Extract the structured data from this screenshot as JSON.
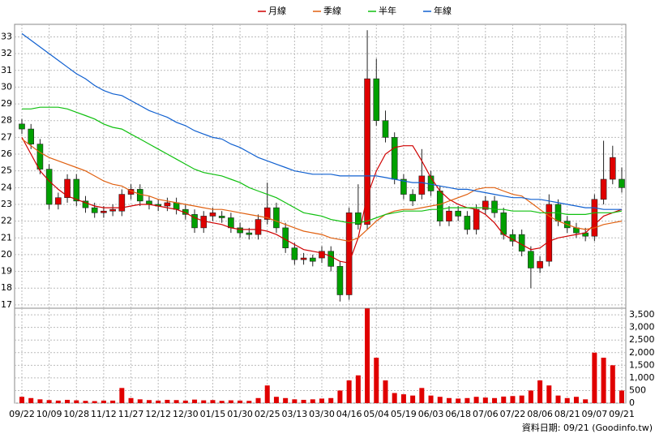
{
  "chart_data": {
    "type": "candlestick",
    "categories": [
      "09/22",
      null,
      null,
      "10/09",
      null,
      null,
      "10/28",
      null,
      null,
      "11/12",
      null,
      null,
      "11/27",
      null,
      null,
      "12/12",
      null,
      null,
      "12/30",
      null,
      null,
      "01/15",
      null,
      null,
      "01/30",
      null,
      null,
      "02/25",
      null,
      null,
      "03/13",
      null,
      null,
      "03/30",
      null,
      null,
      "04/16",
      null,
      null,
      "05/04",
      null,
      null,
      "05/19",
      null,
      null,
      "06/03",
      null,
      null,
      "06/18",
      null,
      null,
      "07/06",
      null,
      null,
      "07/22",
      null,
      null,
      "08/06",
      null,
      null,
      "08/21",
      null,
      null,
      "09/07",
      null,
      null,
      "09/21"
    ],
    "open": [
      27.8,
      27.5,
      26.6,
      25.1,
      23.0,
      23.4,
      24.5,
      23.2,
      22.8,
      22.5,
      22.6,
      22.6,
      23.6,
      23.9,
      23.2,
      23.0,
      22.9,
      23.1,
      22.7,
      22.4,
      21.6,
      22.3,
      22.3,
      22.2,
      21.6,
      21.3,
      21.2,
      22.1,
      22.8,
      21.6,
      20.4,
      19.7,
      19.8,
      19.8,
      20.2,
      19.3,
      17.6,
      22.5,
      21.8,
      30.5,
      28.0,
      27.0,
      24.5,
      23.6,
      23.6,
      24.7,
      23.8,
      22.0,
      22.6,
      22.3,
      21.5,
      22.7,
      23.2,
      22.5,
      21.2,
      21.2,
      20.2,
      19.2,
      19.6,
      23.0,
      22.0,
      21.6,
      21.3,
      21.1,
      23.3,
      24.5,
      24.5
    ],
    "high": [
      28.1,
      27.8,
      26.9,
      25.4,
      23.7,
      24.8,
      24.8,
      23.5,
      23.1,
      22.9,
      23.0,
      23.9,
      24.2,
      24.2,
      23.5,
      23.3,
      23.4,
      23.4,
      23.0,
      22.7,
      22.6,
      22.8,
      22.6,
      22.5,
      21.9,
      21.6,
      22.4,
      24.3,
      23.1,
      21.9,
      20.7,
      20.1,
      20.0,
      20.5,
      20.5,
      19.6,
      22.8,
      24.2,
      33.4,
      31.7,
      28.6,
      27.3,
      24.8,
      23.9,
      26.3,
      25.0,
      24.1,
      22.9,
      22.9,
      22.6,
      23.0,
      23.5,
      23.5,
      22.8,
      21.5,
      21.5,
      20.5,
      19.9,
      23.6,
      23.3,
      22.3,
      21.9,
      21.6,
      23.6,
      26.8,
      26.5,
      25.2
    ],
    "low": [
      27.2,
      26.3,
      24.8,
      22.7,
      22.7,
      23.1,
      22.9,
      22.5,
      22.2,
      22.2,
      22.3,
      22.3,
      23.3,
      22.9,
      22.7,
      22.6,
      22.6,
      22.4,
      22.1,
      21.3,
      21.3,
      22.0,
      21.9,
      21.3,
      21.0,
      20.9,
      20.9,
      21.8,
      21.3,
      20.1,
      19.4,
      19.4,
      19.3,
      19.5,
      19.0,
      17.2,
      17.3,
      21.5,
      21.5,
      27.7,
      26.7,
      24.2,
      23.3,
      22.9,
      23.3,
      23.5,
      21.7,
      21.7,
      22.0,
      21.2,
      21.2,
      22.4,
      22.2,
      20.9,
      20.5,
      19.9,
      18.0,
      18.9,
      19.3,
      21.7,
      21.3,
      21.0,
      20.8,
      20.8,
      23.0,
      24.2,
      23.7
    ],
    "close": [
      27.5,
      26.6,
      25.1,
      23.0,
      23.4,
      24.5,
      23.2,
      22.8,
      22.5,
      22.6,
      22.7,
      23.6,
      23.9,
      23.2,
      23.0,
      22.9,
      23.1,
      22.7,
      22.4,
      21.6,
      22.3,
      22.5,
      22.2,
      21.6,
      21.3,
      21.2,
      22.1,
      22.8,
      21.6,
      20.4,
      19.7,
      19.8,
      19.6,
      20.2,
      19.3,
      17.6,
      22.5,
      21.8,
      30.5,
      28.0,
      27.0,
      24.5,
      23.6,
      23.2,
      24.7,
      23.8,
      22.0,
      22.6,
      22.3,
      21.5,
      22.7,
      23.2,
      22.5,
      21.2,
      20.8,
      20.2,
      19.2,
      19.6,
      23.0,
      22.0,
      21.6,
      21.3,
      21.1,
      23.3,
      24.5,
      25.8,
      24.0
    ],
    "up_color": "#e00000",
    "down_color": "#00a000",
    "ylim": [
      16.8,
      33.75
    ],
    "yticks": [
      17,
      18,
      19,
      20,
      21,
      22,
      23,
      24,
      25,
      26,
      27,
      28,
      29,
      30,
      31,
      32,
      33
    ],
    "grid": true,
    "series": [
      {
        "name": "月線",
        "color": "#d00000",
        "values": [
          27.0,
          26.0,
          25.0,
          24.4,
          23.9,
          23.5,
          23.3,
          23.1,
          22.9,
          22.8,
          22.8,
          22.8,
          22.9,
          23.0,
          23.0,
          22.9,
          22.8,
          22.7,
          22.5,
          22.2,
          22.0,
          21.9,
          21.8,
          21.6,
          21.5,
          21.5,
          21.5,
          21.4,
          21.2,
          20.9,
          20.6,
          20.3,
          20.2,
          20.1,
          19.9,
          19.6,
          19.5,
          21.0,
          23.5,
          25.0,
          26.0,
          26.4,
          26.5,
          26.5,
          25.6,
          24.6,
          23.8,
          23.3,
          23.0,
          22.8,
          22.7,
          22.4,
          21.9,
          21.2,
          20.9,
          20.6,
          20.3,
          20.4,
          20.8,
          21.0,
          21.1,
          21.2,
          21.3,
          21.8,
          22.3,
          22.5,
          22.7
        ]
      },
      {
        "name": "季線",
        "color": "#e06010",
        "values": [
          26.9,
          26.5,
          26.1,
          25.8,
          25.6,
          25.4,
          25.2,
          25.0,
          24.7,
          24.4,
          24.2,
          24.1,
          23.8,
          23.6,
          23.5,
          23.3,
          23.2,
          23.1,
          23.0,
          22.9,
          22.8,
          22.7,
          22.7,
          22.6,
          22.5,
          22.4,
          22.3,
          22.2,
          22.0,
          21.8,
          21.6,
          21.4,
          21.3,
          21.2,
          21.0,
          20.9,
          20.8,
          21.0,
          21.5,
          22.0,
          22.4,
          22.6,
          22.7,
          22.7,
          22.8,
          22.9,
          23.0,
          23.2,
          23.4,
          23.6,
          23.9,
          24.0,
          24.0,
          23.8,
          23.6,
          23.5,
          23.1,
          22.7,
          22.3,
          22.0,
          21.8,
          21.6,
          21.5,
          21.6,
          21.8,
          21.9,
          22.0
        ]
      },
      {
        "name": "半年",
        "color": "#10c010",
        "values": [
          28.7,
          28.7,
          28.8,
          28.8,
          28.8,
          28.7,
          28.5,
          28.3,
          28.1,
          27.8,
          27.6,
          27.5,
          27.2,
          26.9,
          26.6,
          26.3,
          26.0,
          25.7,
          25.4,
          25.1,
          24.9,
          24.8,
          24.7,
          24.5,
          24.3,
          24.0,
          23.8,
          23.6,
          23.4,
          23.1,
          22.8,
          22.5,
          22.4,
          22.3,
          22.1,
          22.0,
          21.9,
          21.9,
          22.0,
          22.2,
          22.4,
          22.5,
          22.6,
          22.6,
          22.6,
          22.7,
          22.7,
          22.8,
          22.8,
          22.8,
          22.8,
          22.8,
          22.7,
          22.7,
          22.6,
          22.6,
          22.6,
          22.5,
          22.5,
          22.5,
          22.4,
          22.4,
          22.4,
          22.5,
          22.5,
          22.5,
          22.6
        ]
      },
      {
        "name": "年線",
        "color": "#1060d0",
        "values": [
          33.2,
          32.8,
          32.4,
          32.0,
          31.6,
          31.2,
          30.8,
          30.5,
          30.1,
          29.8,
          29.6,
          29.5,
          29.2,
          28.9,
          28.6,
          28.4,
          28.2,
          27.9,
          27.7,
          27.4,
          27.2,
          27.0,
          26.9,
          26.6,
          26.4,
          26.1,
          25.8,
          25.6,
          25.4,
          25.2,
          25.0,
          24.9,
          24.8,
          24.8,
          24.8,
          24.7,
          24.7,
          24.7,
          24.7,
          24.7,
          24.6,
          24.5,
          24.4,
          24.3,
          24.3,
          24.2,
          24.1,
          24.0,
          23.9,
          23.9,
          23.8,
          23.7,
          23.6,
          23.5,
          23.4,
          23.4,
          23.3,
          23.3,
          23.2,
          23.1,
          23.0,
          22.9,
          22.8,
          22.8,
          22.7,
          22.7,
          22.7
        ]
      }
    ],
    "volume": {
      "color": "#e00000",
      "values": [
        250,
        200,
        150,
        120,
        100,
        130,
        110,
        90,
        80,
        100,
        100,
        600,
        200,
        150,
        120,
        100,
        130,
        120,
        100,
        140,
        110,
        120,
        90,
        110,
        100,
        90,
        200,
        700,
        250,
        200,
        150,
        130,
        150,
        180,
        200,
        500,
        900,
        1100,
        3750,
        1800,
        900,
        400,
        350,
        300,
        600,
        300,
        250,
        200,
        180,
        200,
        250,
        220,
        200,
        260,
        280,
        300,
        500,
        900,
        700,
        300,
        200,
        250,
        150,
        2000,
        1800,
        1500,
        500
      ],
      "ylim": [
        0,
        3760
      ],
      "yticks": [
        0,
        500,
        {
          "value": 1000,
          "label": "1,000"
        },
        {
          "value": 1500,
          "label": "1,500"
        },
        {
          "value": 2000,
          "label": "2,000"
        },
        {
          "value": 2500,
          "label": "2,500"
        },
        {
          "value": 3000,
          "label": "3,000"
        },
        {
          "value": 3500,
          "label": "3,500"
        }
      ]
    },
    "footer": "資料日期: 09/21 (Goodinfo.tw)"
  }
}
